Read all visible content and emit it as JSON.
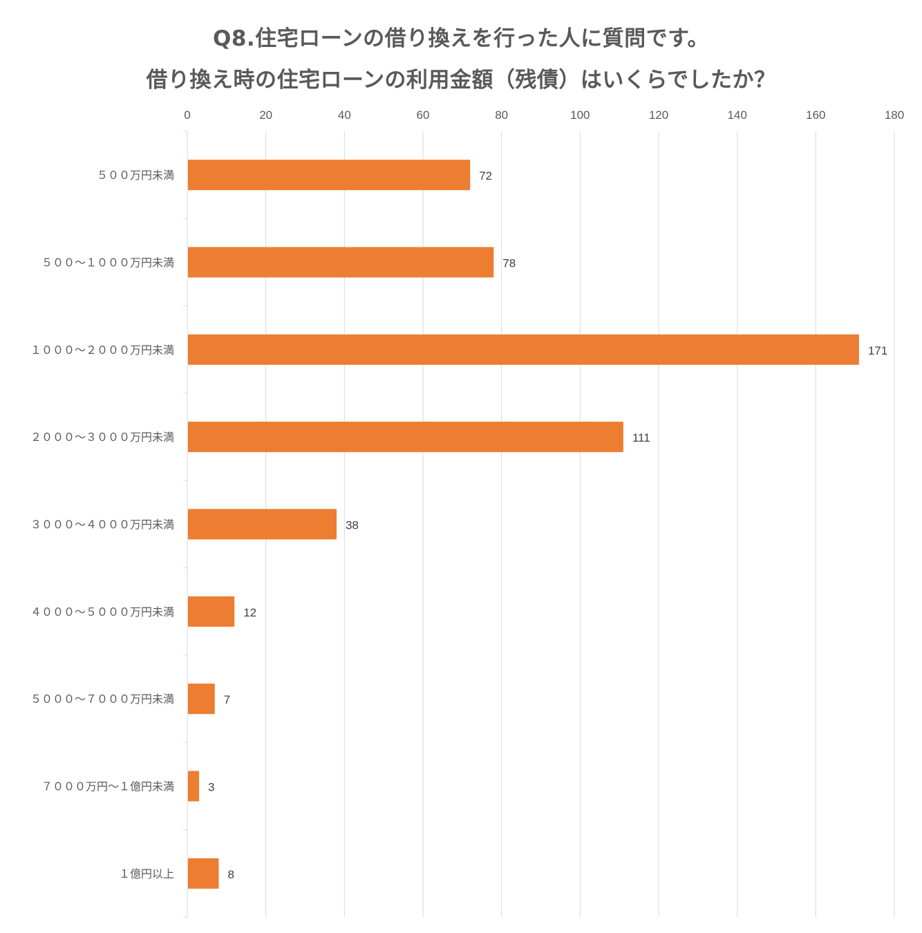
{
  "chart_data": {
    "type": "bar",
    "orientation": "horizontal",
    "title_lines": [
      "Q8.住宅ローンの借り換えを行った人に質問です。",
      "借り換え時の住宅ローンの利用金額（残債）はいくらでしたか？"
    ],
    "categories": [
      "５００万円未満",
      "５００～１０００万円未満",
      "１０００～２０００万円未満",
      "２０００～３０００万円未満",
      "３０００～４０００万円未満",
      "４０００～５０００万円未満",
      "５０００～７０００万円未満",
      "７０００万円～１億円未満",
      "１億円以上"
    ],
    "values": [
      72,
      78,
      171,
      111,
      38,
      12,
      7,
      3,
      8
    ],
    "xlim": [
      0,
      180
    ],
    "xticks": [
      0,
      20,
      40,
      60,
      80,
      100,
      120,
      140,
      160,
      180
    ],
    "x_axis_position": "top",
    "grid": true,
    "data_labels": true,
    "bar_color": "#ED7D31",
    "grid_color": "#D9D9D9",
    "text_color": "#595959"
  }
}
